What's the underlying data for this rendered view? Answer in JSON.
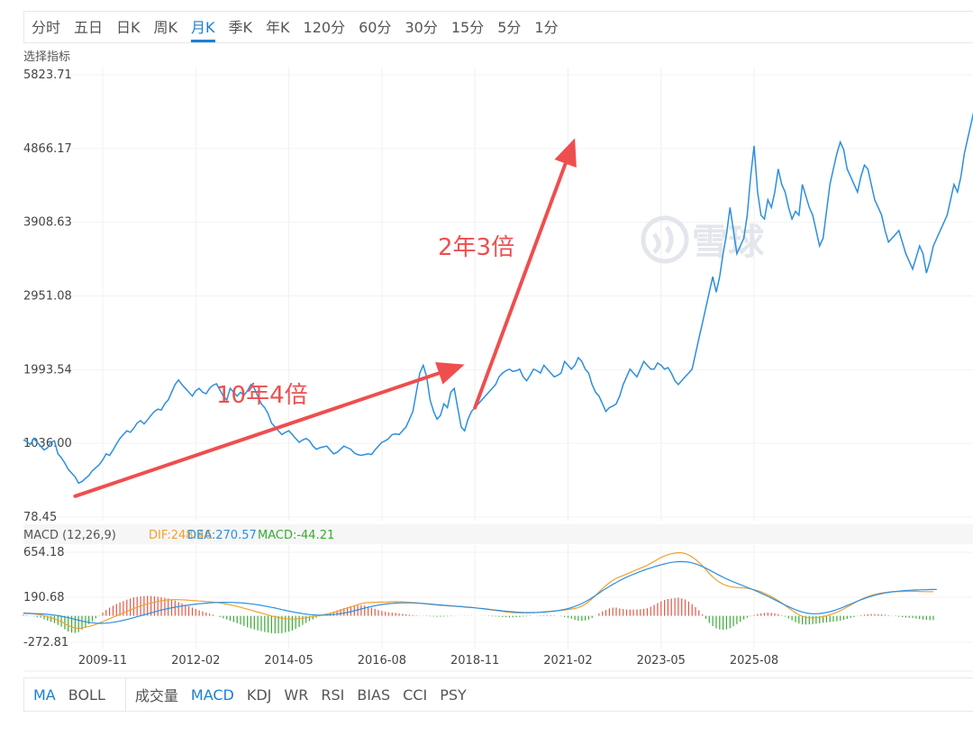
{
  "period_tabs": [
    {
      "label": "分时",
      "active": false
    },
    {
      "label": "五日",
      "active": false
    },
    {
      "label": "日K",
      "active": false
    },
    {
      "label": "周K",
      "active": false
    },
    {
      "label": "月K",
      "active": true
    },
    {
      "label": "季K",
      "active": false
    },
    {
      "label": "年K",
      "active": false
    },
    {
      "label": "120分",
      "active": false
    },
    {
      "label": "60分",
      "active": false
    },
    {
      "label": "30分",
      "active": false
    },
    {
      "label": "15分",
      "active": false
    },
    {
      "label": "5分",
      "active": false
    },
    {
      "label": "1分",
      "active": false
    }
  ],
  "select_indicator_label": "选择指标",
  "watermark_text": "雪球",
  "macd_legend": {
    "name": "MACD (12,26,9)",
    "dif": "DIF:248.46",
    "dea": "DEA:270.57",
    "macd": "MACD:-44.21"
  },
  "indicator_tabs_left": [
    {
      "label": "MA",
      "active": true
    },
    {
      "label": "BOLL",
      "active": false
    }
  ],
  "indicator_tabs_right": [
    {
      "label": "成交量",
      "active": false
    },
    {
      "label": "MACD",
      "active": true
    },
    {
      "label": "KDJ",
      "active": false
    },
    {
      "label": "WR",
      "active": false
    },
    {
      "label": "RSI",
      "active": false
    },
    {
      "label": "BIAS",
      "active": false
    },
    {
      "label": "CCI",
      "active": false
    },
    {
      "label": "PSY",
      "active": false
    }
  ],
  "colors": {
    "price_line": "#2b8fe0",
    "dif_line": "#f0a030",
    "dea_line": "#2b8fe0",
    "hist_up": "#e05a4a",
    "hist_down": "#3aaa35",
    "arrow": "#ef4e4e",
    "active_tab": "#1a7fd4"
  },
  "chart_data": {
    "type": "line",
    "price": {
      "y_ticks": [
        "5823.71",
        "4866.17",
        "3908.63",
        "2951.08",
        "1993.54",
        "1036.00",
        "78.45"
      ],
      "ylim": [
        78.45,
        5823.71
      ],
      "x_ticks": [
        "2009-11",
        "2012-02",
        "2014-05",
        "2016-08",
        "2018-11",
        "2021-02",
        "2023-05",
        "2025-08"
      ],
      "xlim": [
        "2007-12",
        "2026-02"
      ],
      "start": "2007-12",
      "interval": "month",
      "values": [
        1080,
        1060,
        1020,
        1100,
        1050,
        1000,
        950,
        980,
        1050,
        1070,
        900,
        850,
        780,
        700,
        650,
        600,
        520,
        540,
        580,
        620,
        680,
        720,
        760,
        820,
        900,
        880,
        950,
        1030,
        1100,
        1150,
        1200,
        1180,
        1230,
        1300,
        1330,
        1290,
        1340,
        1400,
        1450,
        1480,
        1470,
        1550,
        1600,
        1700,
        1800,
        1860,
        1800,
        1750,
        1700,
        1650,
        1720,
        1750,
        1700,
        1680,
        1750,
        1790,
        1810,
        1730,
        1650,
        1600,
        1750,
        1700,
        1650,
        1700,
        1660,
        1720,
        1800,
        1750,
        1650,
        1550,
        1500,
        1420,
        1300,
        1250,
        1200,
        1150,
        1180,
        1200,
        1150,
        1100,
        1050,
        1080,
        1100,
        1070,
        1000,
        960,
        980,
        990,
        1000,
        950,
        900,
        920,
        960,
        1000,
        980,
        960,
        910,
        890,
        880,
        890,
        900,
        890,
        950,
        1000,
        1050,
        1070,
        1100,
        1150,
        1160,
        1150,
        1200,
        1250,
        1350,
        1450,
        1700,
        1950,
        2050,
        1900,
        1600,
        1450,
        1350,
        1400,
        1550,
        1500,
        1700,
        1750,
        1500,
        1250,
        1200,
        1350,
        1450,
        1500,
        1550,
        1600,
        1650,
        1700,
        1750,
        1800,
        1900,
        1950,
        1980,
        2000,
        1970,
        1980,
        2000,
        1900,
        1850,
        1920,
        2000,
        1980,
        1950,
        2050,
        2000,
        1950,
        1900,
        1920,
        1950,
        2100,
        2050,
        2000,
        2050,
        2150,
        2100,
        2000,
        1950,
        1800,
        1700,
        1650,
        1550,
        1450,
        1500,
        1520,
        1550,
        1650,
        1800,
        1900,
        2000,
        1950,
        1900,
        2000,
        2100,
        2050,
        2000,
        2000,
        2080,
        2050,
        2000,
        2020,
        1950,
        1850,
        1800,
        1850,
        1900,
        1950,
        2000,
        2200,
        2400,
        2600,
        2800,
        3000,
        3200,
        3000,
        3200,
        3500,
        3750,
        4100,
        3800,
        3500,
        3600,
        3700,
        4000,
        4500,
        4900,
        4300,
        4000,
        3950,
        4200,
        4100,
        4300,
        4600,
        4400,
        4300,
        4100,
        3950,
        4050,
        4000,
        4400,
        4250,
        4100,
        4000,
        3800,
        3600,
        3700,
        4050,
        4400,
        4600,
        4800,
        4950,
        4850,
        4600,
        4500,
        4400,
        4300,
        4500,
        4650,
        4600,
        4400,
        4200,
        4100,
        4000,
        3800,
        3650,
        3700,
        3750,
        3800,
        3650,
        3500,
        3400,
        3300,
        3450,
        3600,
        3500,
        3250,
        3400,
        3600,
        3700,
        3800,
        3900,
        4000,
        4200,
        4400,
        4300,
        4500,
        4800,
        5000,
        5200,
        5400,
        5300,
        5350,
        5500,
        5550,
        5400,
        5300,
        5450,
        5500,
        5600,
        5450,
        5000,
        4900
      ]
    },
    "macd": {
      "y_ticks": [
        "654.18",
        "190.68",
        "-272.81"
      ],
      "ylim": [
        -272.81,
        654.18
      ],
      "legend": [
        "DIF:248.46",
        "DEA:270.57",
        "MACD:-44.21"
      ],
      "dif_last": 248.46,
      "dea_last": 270.57,
      "macd_last": -44.21,
      "start": "2007-12",
      "interval": "month",
      "dif": [
        30,
        28,
        25,
        20,
        15,
        10,
        0,
        -10,
        -20,
        -30,
        -45,
        -60,
        -80,
        -100,
        -115,
        -125,
        -130,
        -125,
        -118,
        -110,
        -100,
        -88,
        -75,
        -60,
        -45,
        -30,
        -15,
        0,
        15,
        30,
        45,
        60,
        75,
        88,
        100,
        112,
        123,
        132,
        140,
        148,
        155,
        160,
        164,
        166,
        167,
        166,
        165,
        163,
        160,
        158,
        155,
        152,
        150,
        147,
        144,
        141,
        137,
        132,
        126,
        120,
        113,
        105,
        97,
        88,
        78,
        68,
        58,
        48,
        38,
        28,
        18,
        8,
        -2,
        -10,
        -18,
        -25,
        -30,
        -33,
        -34,
        -33,
        -30,
        -25,
        -20,
        -14,
        -8,
        -2,
        4,
        10,
        18,
        26,
        35,
        45,
        56,
        68,
        80,
        92,
        104,
        115,
        125,
        132,
        136,
        138,
        139,
        140,
        141,
        142,
        143,
        144,
        145,
        144,
        143,
        141,
        139,
        136,
        133,
        130,
        126,
        122,
        118,
        114,
        110,
        107,
        105,
        103,
        101,
        99,
        97,
        95,
        92,
        89,
        86,
        82,
        78,
        74,
        70,
        65,
        60,
        55,
        50,
        45,
        40,
        36,
        33,
        31,
        30,
        30,
        30,
        31,
        33,
        35,
        38,
        41,
        44,
        47,
        50,
        53,
        56,
        60,
        64,
        69,
        75,
        85,
        100,
        120,
        145,
        175,
        210,
        245,
        280,
        310,
        340,
        365,
        385,
        400,
        415,
        430,
        445,
        460,
        475,
        490,
        505,
        520,
        540,
        560,
        580,
        600,
        615,
        628,
        638,
        645,
        650,
        648,
        640,
        625,
        605,
        580,
        550,
        515,
        475,
        435,
        400,
        370,
        345,
        325,
        310,
        300,
        295,
        292,
        290,
        288,
        283,
        276,
        268,
        258,
        246,
        232,
        216,
        198,
        178,
        156,
        132,
        106,
        80,
        55,
        30,
        10,
        -5,
        -15,
        -20,
        -22,
        -20,
        -15,
        -8,
        0,
        10,
        22,
        36,
        52,
        70,
        90,
        110,
        130,
        150,
        168,
        184,
        198,
        210,
        220,
        228,
        235,
        240,
        244,
        247,
        248,
        249,
        250,
        251,
        252,
        253,
        252,
        250,
        249,
        248,
        248,
        248
      ],
      "dea": [
        25,
        25,
        24,
        23,
        22,
        20,
        18,
        15,
        11,
        7,
        2,
        -4,
        -11,
        -19,
        -28,
        -37,
        -46,
        -54,
        -61,
        -67,
        -72,
        -75,
        -77,
        -77,
        -75,
        -72,
        -67,
        -61,
        -54,
        -46,
        -38,
        -29,
        -20,
        -10,
        0,
        10,
        20,
        30,
        40,
        50,
        59,
        67,
        75,
        82,
        89,
        95,
        101,
        106,
        111,
        116,
        120,
        124,
        127,
        130,
        133,
        135,
        137,
        138,
        139,
        139,
        138,
        137,
        135,
        133,
        130,
        127,
        123,
        118,
        113,
        107,
        101,
        94,
        87,
        80,
        72,
        64,
        56,
        48,
        41,
        34,
        28,
        22,
        17,
        13,
        10,
        8,
        7,
        7,
        8,
        10,
        13,
        17,
        22,
        28,
        35,
        43,
        52,
        61,
        70,
        79,
        88,
        96,
        103,
        110,
        116,
        121,
        125,
        128,
        130,
        132,
        133,
        133,
        133,
        132,
        131,
        129,
        127,
        124,
        121,
        118,
        115,
        112,
        109,
        106,
        103,
        100,
        97,
        94,
        91,
        88,
        85,
        82,
        78,
        75,
        71,
        67,
        63,
        59,
        55,
        51,
        47,
        44,
        41,
        38,
        36,
        34,
        33,
        33,
        33,
        34,
        36,
        38,
        41,
        44,
        48,
        53,
        59,
        66,
        74,
        84,
        96,
        110,
        126,
        144,
        164,
        186,
        209,
        233,
        257,
        280,
        302,
        323,
        343,
        362,
        380,
        397,
        413,
        428,
        442,
        456,
        469,
        481,
        493,
        504,
        515,
        525,
        534,
        542,
        549,
        554,
        557,
        558,
        556,
        552,
        545,
        535,
        522,
        507,
        490,
        472,
        453,
        434,
        415,
        397,
        380,
        364,
        349,
        335,
        321,
        307,
        293,
        279,
        264,
        249,
        233,
        217,
        200,
        183,
        165,
        147,
        129,
        111,
        94,
        78,
        63,
        50,
        39,
        30,
        24,
        21,
        21,
        23,
        28,
        34,
        42,
        52,
        64,
        77,
        91,
        106,
        121,
        136,
        151,
        165,
        178,
        190,
        201,
        211,
        220,
        228,
        235,
        241,
        246,
        250,
        254,
        257,
        260,
        262,
        264,
        266,
        267,
        268,
        269,
        270,
        270,
        271
      ]
    },
    "annotations": [
      {
        "text": "10年4倍",
        "from": [
          "2009-03",
          350
        ],
        "to": [
          "2018-08",
          2060
        ]
      },
      {
        "text": "2年3倍",
        "from": [
          "2018-11",
          1500
        ],
        "to": [
          "2021-04",
          5000
        ]
      }
    ]
  }
}
